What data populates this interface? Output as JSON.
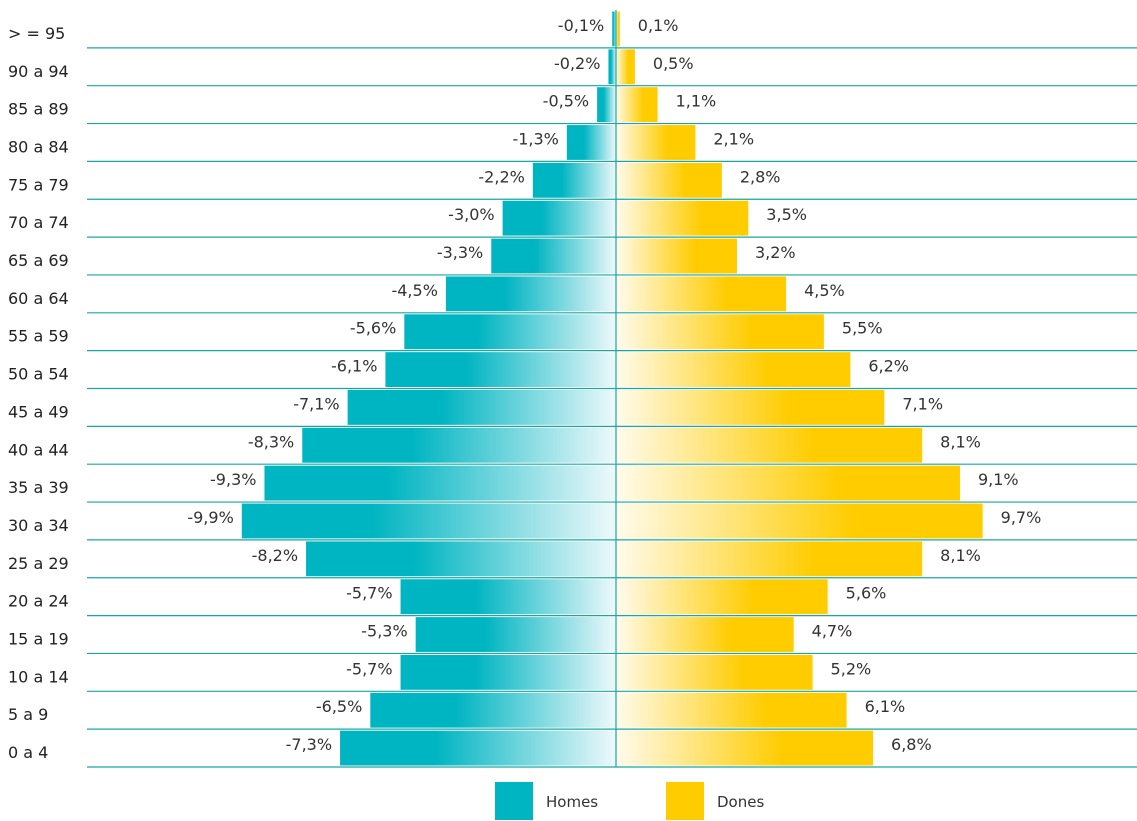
{
  "chart_data": {
    "type": "bar",
    "orientation": "horizontal",
    "layout": "population-pyramid",
    "categories": [
      "> = 95",
      "90 a 94",
      "85 a 89",
      "80 a 84",
      "75 a 79",
      "70 a 74",
      "65 a 69",
      "60 a 64",
      "55 a 59",
      "50 a 54",
      "45 a 49",
      "40 a 44",
      "35 a 39",
      "30 a 34",
      "25 a 29",
      "20 a 24",
      "15 a 19",
      "10 a 14",
      "5 a 9",
      "0 a 4"
    ],
    "series": [
      {
        "name": "Homes",
        "color": "#00b5c2",
        "values": [
          -0.1,
          -0.2,
          -0.5,
          -1.3,
          -2.2,
          -3.0,
          -3.3,
          -4.5,
          -5.6,
          -6.1,
          -7.1,
          -8.3,
          -9.3,
          -9.9,
          -8.2,
          -5.7,
          -5.3,
          -5.7,
          -6.5,
          -7.3
        ],
        "labels": [
          "-0,1%",
          "-0,2%",
          "-0,5%",
          "-1,3%",
          "-2,2%",
          "-3,0%",
          "-3,3%",
          "-4,5%",
          "-5,6%",
          "-6,1%",
          "-7,1%",
          "-8,3%",
          "-9,3%",
          "-9,9%",
          "-8,2%",
          "-5,7%",
          "-5,3%",
          "-5,7%",
          "-6,5%",
          "-7,3%"
        ]
      },
      {
        "name": "Dones",
        "color": "#ffcc00",
        "values": [
          0.1,
          0.5,
          1.1,
          2.1,
          2.8,
          3.5,
          3.2,
          4.5,
          5.5,
          6.2,
          7.1,
          8.1,
          9.1,
          9.7,
          8.1,
          5.6,
          4.7,
          5.2,
          6.1,
          6.8
        ],
        "labels": [
          "0,1%",
          "0,5%",
          "1,1%",
          "2,1%",
          "2,8%",
          "3,5%",
          "3,2%",
          "4,5%",
          "5,5%",
          "6,2%",
          "7,1%",
          "8,1%",
          "9,1%",
          "9,7%",
          "8,1%",
          "5,6%",
          "4,7%",
          "5,2%",
          "6,1%",
          "6,8%"
        ]
      }
    ],
    "xlim": [
      -10,
      10
    ],
    "grid": "horizontal lines",
    "legend_position": "bottom-center",
    "title": "",
    "xlabel": "",
    "ylabel": ""
  }
}
